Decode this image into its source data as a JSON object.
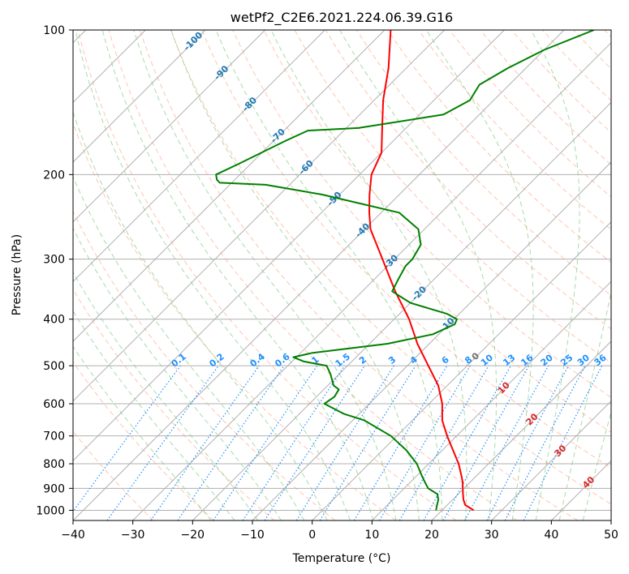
{
  "chart_data": {
    "type": "line",
    "subtype": "skew-t log-p diagram",
    "title": "wetPf2_C2E6.2021.224.06.39.G16",
    "xlabel": "Temperature (°C)",
    "ylabel": "Pressure (hPa)",
    "xlim": [
      -40,
      50
    ],
    "ylim": [
      1050,
      100
    ],
    "y_scale": "log",
    "grid": true,
    "x_ticks": [
      "−40",
      "−30",
      "−20",
      "−10",
      "0",
      "10",
      "20",
      "30",
      "40",
      "50"
    ],
    "y_ticks": [
      "100",
      "200",
      "300",
      "400",
      "500",
      "600",
      "700",
      "800",
      "900",
      "1000"
    ],
    "series": [
      {
        "color": "#ff0000",
        "p": [
          1000,
          975,
          950,
          925,
          900,
          875,
          850,
          800,
          750,
          700,
          650,
          600,
          550,
          500,
          450,
          400,
          350,
          300,
          260,
          240,
          220,
          200,
          180,
          160,
          140,
          120,
          100
        ],
        "t": [
          25.3,
          23.0,
          21.8,
          20.8,
          19.8,
          18.8,
          17.6,
          15.0,
          11.8,
          8.4,
          5.0,
          2.2,
          -1.5,
          -6.5,
          -12.0,
          -17.5,
          -24.5,
          -32.0,
          -39.0,
          -42.0,
          -45.0,
          -48.0,
          -50.0,
          -54.0,
          -58.5,
          -63.0,
          -69.0
        ]
      },
      {
        "color": "#008000",
        "p": [
          1000,
          975,
          950,
          925,
          900,
          875,
          850,
          800,
          750,
          700,
          650,
          630,
          600,
          580,
          560,
          550,
          520,
          500,
          490,
          480,
          470,
          450,
          430,
          410,
          400,
          390,
          370,
          350,
          330,
          310,
          300,
          280,
          260,
          240,
          220,
          210,
          208,
          205,
          200,
          190,
          170,
          162,
          160,
          150,
          140,
          130,
          120,
          110,
          100
        ],
        "t": [
          19.0,
          18.3,
          17.6,
          16.5,
          14.0,
          12.5,
          11.0,
          8.0,
          4.0,
          -1.0,
          -8.0,
          -12.5,
          -17.5,
          -17.0,
          -17.5,
          -19.0,
          -21.5,
          -23.5,
          -28.0,
          -30.5,
          -28.0,
          -17.0,
          -11.0,
          -9.0,
          -9.5,
          -12.0,
          -20.0,
          -25.0,
          -26.0,
          -27.0,
          -27.0,
          -28.0,
          -31.0,
          -37.0,
          -53.0,
          -64.0,
          -72.0,
          -73.0,
          -74.0,
          -72.0,
          -68.0,
          -66.0,
          -58.0,
          -46.0,
          -44.0,
          -45.0,
          -43.0,
          -40.0,
          -35.0
        ]
      }
    ],
    "isotherm_labels": [
      "-100",
      "-90",
      "-80",
      "-70",
      "-60",
      "-50",
      "-40",
      "-30",
      "-20",
      "-10",
      "0",
      "10",
      "20",
      "30",
      "40"
    ],
    "mixing_ratio_labels": [
      "0.1",
      "0.2",
      "0.4",
      "0.6",
      "1",
      "1.5",
      "2",
      "3",
      "4",
      "6",
      "8",
      "10",
      "13",
      "16",
      "20",
      "25",
      "30",
      "36"
    ],
    "colors": {
      "temperature": "#ff0000",
      "dewpoint": "#008000",
      "isotherm_label_cold": "#1f77b4",
      "isotherm_label_warm": "#d62728",
      "mixing_ratio": "#1e90ff",
      "dry_adiabat": "#ff7f50",
      "moist_adiabat": "#3cb043",
      "grid": "#b0b0b0"
    }
  }
}
